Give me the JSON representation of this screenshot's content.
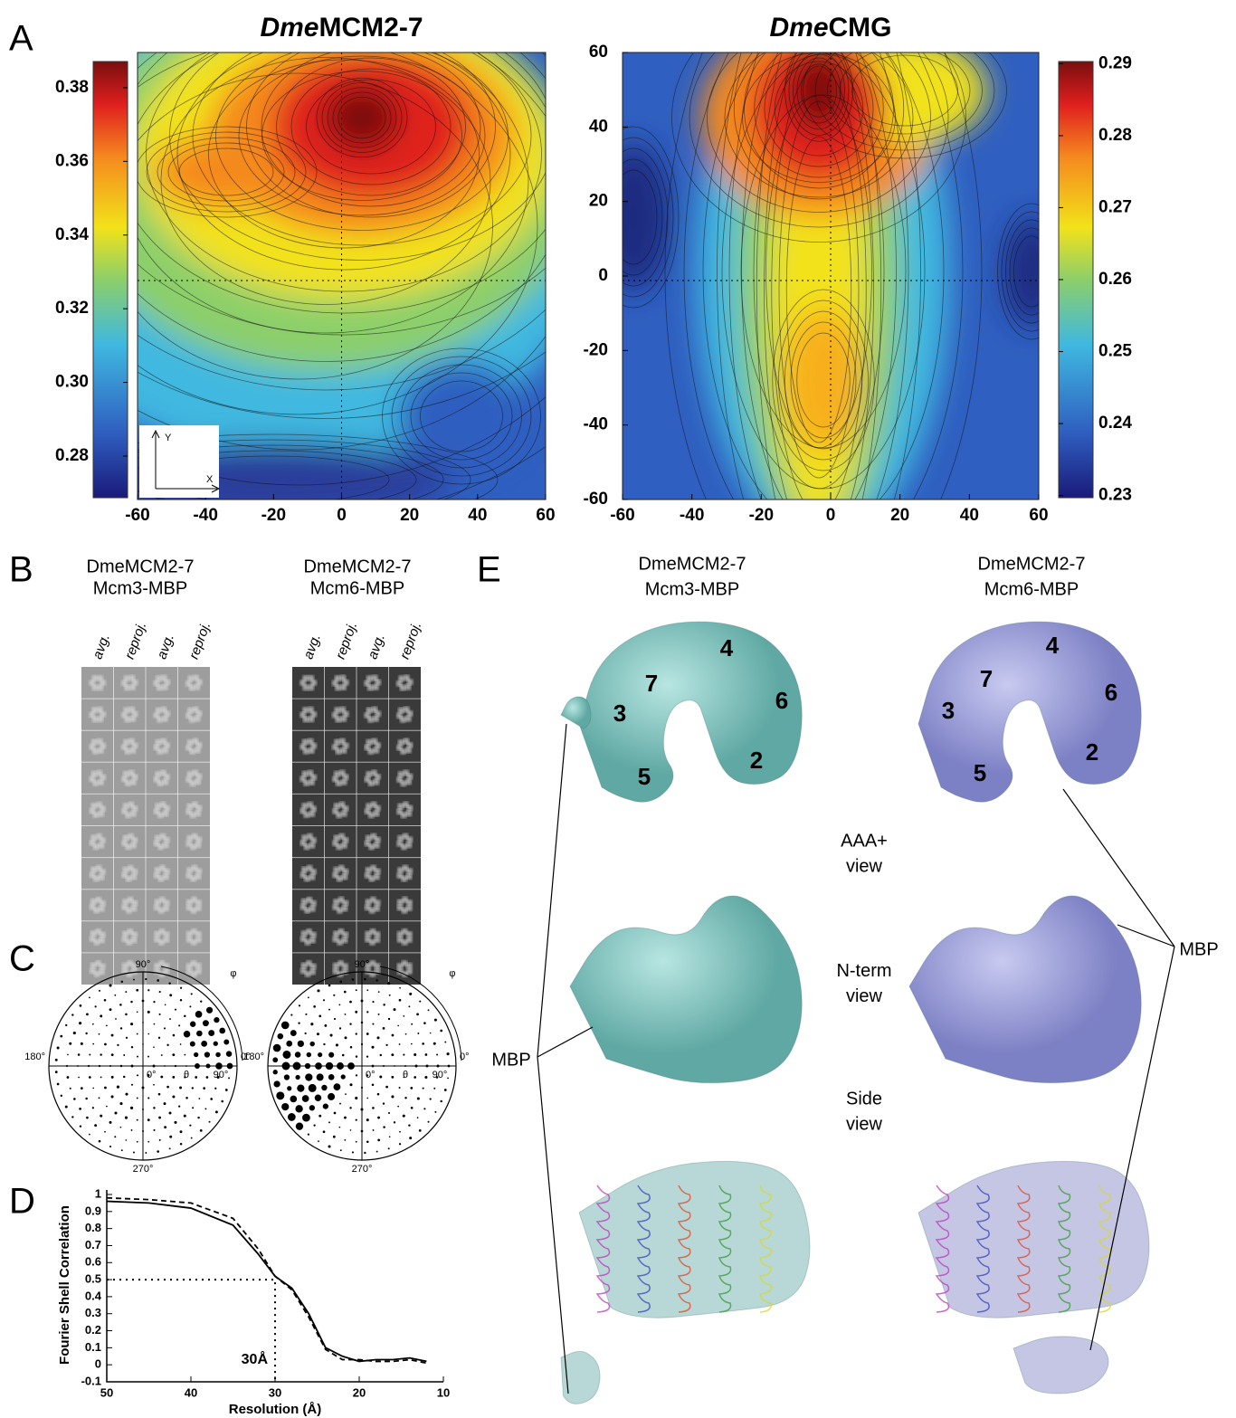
{
  "panel_labels": [
    "A",
    "B",
    "C",
    "D",
    "E"
  ],
  "panel_a": {
    "maps": [
      {
        "title_italic": "Dme",
        "title": "MCM2-7",
        "xlim": [
          -60,
          60
        ],
        "xticks": [
          -60,
          -40,
          -20,
          0,
          20,
          40,
          60
        ]
      },
      {
        "title_italic": "Dme",
        "title": "CMG",
        "xlim": [
          -60,
          60
        ],
        "xticks": [
          -60,
          -40,
          -20,
          0,
          20,
          40,
          60
        ],
        "ylim": [
          -60,
          60
        ],
        "yticks": [
          60,
          40,
          20,
          0,
          -20,
          -40,
          -60
        ]
      }
    ],
    "colorbars": [
      {
        "lim": [
          0.2687,
          0.3871
        ],
        "ticks": [
          0.38,
          0.36,
          0.34,
          0.32,
          {
            "value": 0.3,
            "label": "0.30"
          },
          0.28
        ]
      },
      {
        "lim": [
          0.2297,
          0.2903
        ],
        "ticks": [
          0.29,
          0.28,
          0.27,
          0.26,
          0.25,
          0.24,
          0.23
        ]
      }
    ],
    "inset_axes": [
      "Y",
      "X"
    ]
  },
  "panel_b": {
    "groups": [
      {
        "lines": [
          "DmeMCM2-7",
          "Mcm3-MBP"
        ],
        "columns": [
          "avg.",
          "reproj.",
          "avg.",
          "reproj."
        ]
      },
      {
        "lines": [
          "DmeMCM2-7",
          "Mcm6-MBP"
        ],
        "columns": [
          "avg.",
          "reproj.",
          "avg.",
          "reproj."
        ]
      }
    ]
  },
  "panel_c": {
    "plots": [
      {
        "top": "90°",
        "left": "180°",
        "right": "0°",
        "bottom": "270°",
        "center": "0°",
        "theta": "θ",
        "mid": "90°",
        "phi": "φ"
      },
      {
        "top": "90°",
        "left": "180°",
        "right": "0°",
        "bottom": "270°",
        "center": "0°",
        "theta": "θ",
        "mid": "90°",
        "phi": "φ"
      }
    ]
  },
  "chart_data": {
    "type": "line",
    "xlabel": "Resolution (Å)",
    "ylabel": "Fourier Shell Correlation",
    "x": [
      50,
      45,
      40,
      35,
      32,
      30,
      28,
      26,
      24,
      22,
      20,
      18,
      16,
      14,
      12
    ],
    "series": [
      {
        "color": "#000",
        "style": "solid",
        "values": [
          0.96,
          0.95,
          0.92,
          0.82,
          0.65,
          0.52,
          0.45,
          0.3,
          0.1,
          0.05,
          0.02,
          0.03,
          0.03,
          0.04,
          0.02
        ]
      },
      {
        "color": "#000",
        "style": "dashed",
        "values": [
          0.98,
          0.97,
          0.95,
          0.86,
          0.68,
          0.52,
          0.44,
          0.28,
          0.09,
          0.03,
          0.03,
          0.02,
          0.02,
          0.03,
          0.01
        ]
      }
    ],
    "xlim": [
      50,
      10
    ],
    "xticks": [
      50,
      40,
      30,
      20,
      10
    ],
    "ylim": [
      -0.1,
      1
    ],
    "yticks": [
      1,
      0.9,
      0.8,
      0.7,
      0.6,
      0.5,
      0.4,
      0.3,
      0.2,
      0.1,
      0,
      -0.1
    ],
    "threshold": {
      "x": 30,
      "y": 0.5,
      "label": "30Å"
    }
  },
  "panel_e": {
    "columns": [
      {
        "lines": [
          "DmeMCM2-7",
          "Mcm3-MBP"
        ],
        "subunits": [
          "7",
          "4",
          "3",
          "6",
          "2",
          "5"
        ],
        "mbp": "MBP"
      },
      {
        "lines": [
          "DmeMCM2-7",
          "Mcm6-MBP"
        ],
        "subunits": [
          "7",
          "4",
          "3",
          "6",
          "2",
          "5"
        ],
        "mbp": "MBP"
      }
    ],
    "views": [
      [
        "AAA+",
        "view"
      ],
      [
        "N-term",
        "view"
      ],
      [
        "Side",
        "view"
      ]
    ]
  }
}
